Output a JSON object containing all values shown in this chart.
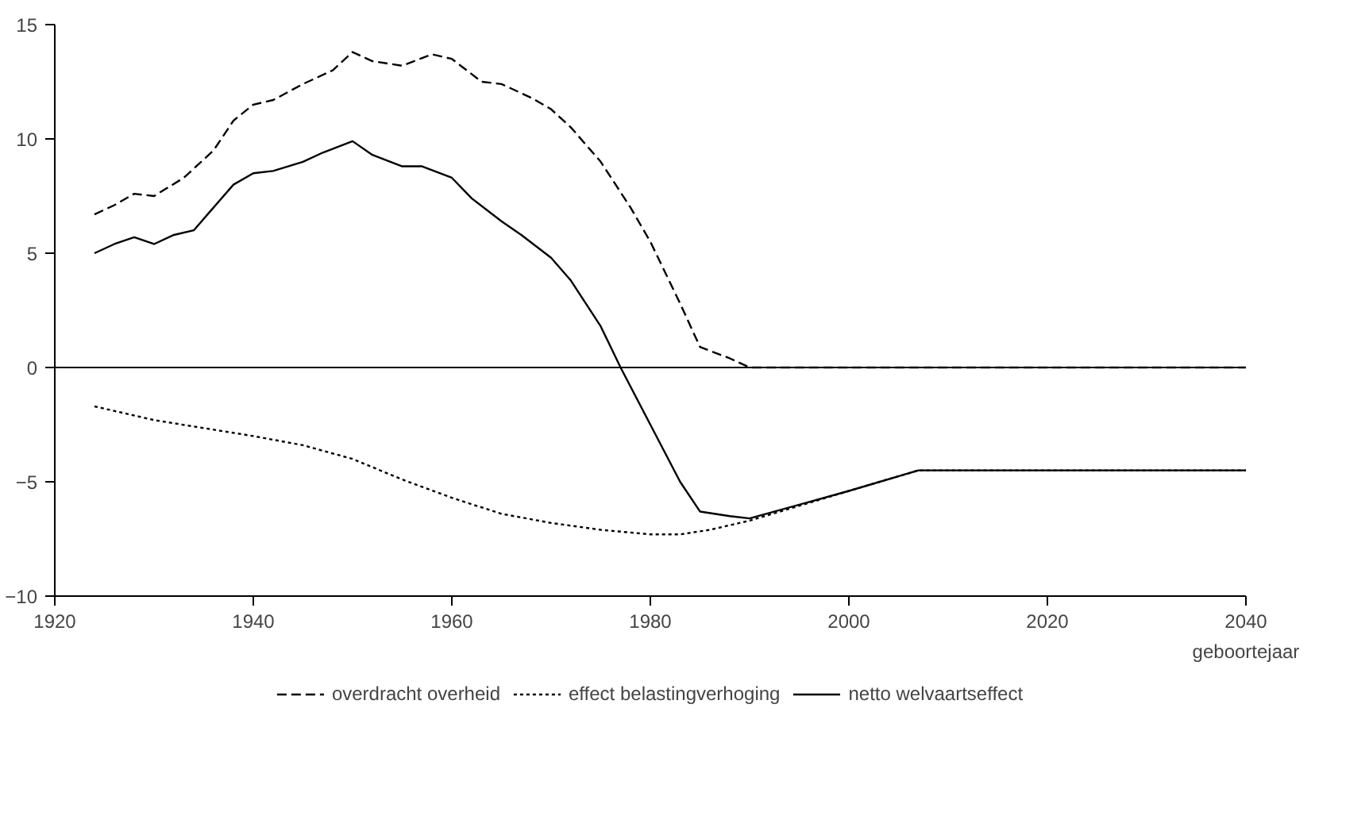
{
  "chart_data": {
    "type": "line",
    "xlabel": "geboortejaar",
    "xlim": [
      1920,
      2040
    ],
    "ylim": [
      -10,
      15
    ],
    "xticks": [
      1920,
      1940,
      1960,
      1980,
      2000,
      2020,
      2040
    ],
    "yticks": [
      -10,
      -5,
      0,
      5,
      10,
      15
    ],
    "grid": false,
    "legend": "bottom",
    "marker": "none",
    "ref_lines": [
      {
        "axis": "y",
        "value": 0,
        "color": "#000000"
      }
    ],
    "series": [
      {
        "name": "overdracht overheid",
        "color": "#000000",
        "line_style": "dashed",
        "x": [
          1924,
          1926,
          1928,
          1930,
          1933,
          1936,
          1938,
          1940,
          1942,
          1945,
          1948,
          1950,
          1952,
          1955,
          1958,
          1960,
          1963,
          1965,
          1968,
          1970,
          1972,
          1975,
          1978,
          1980,
          1983,
          1985,
          1988,
          1990,
          2040
        ],
        "values": [
          6.7,
          7.1,
          7.6,
          7.5,
          8.3,
          9.5,
          10.8,
          11.5,
          11.7,
          12.4,
          13.0,
          13.8,
          13.4,
          13.2,
          13.7,
          13.5,
          12.5,
          12.4,
          11.8,
          11.3,
          10.5,
          9.0,
          7.0,
          5.5,
          2.8,
          0.9,
          0.4,
          0,
          0
        ]
      },
      {
        "name": "effect belastingverhoging",
        "color": "#000000",
        "line_style": "dotted",
        "x": [
          1924,
          1930,
          1940,
          1945,
          1950,
          1955,
          1960,
          1965,
          1970,
          1975,
          1980,
          1983,
          1986,
          1990,
          2000,
          2007,
          2040
        ],
        "values": [
          -1.7,
          -2.3,
          -3.0,
          -3.4,
          -4.0,
          -4.9,
          -5.7,
          -6.4,
          -6.8,
          -7.1,
          -7.3,
          -7.3,
          -7.1,
          -6.7,
          -5.4,
          -4.5,
          -4.5
        ]
      },
      {
        "name": "netto welvaartseffect",
        "color": "#000000",
        "line_style": "solid",
        "x": [
          1924,
          1926,
          1928,
          1930,
          1932,
          1934,
          1936,
          1938,
          1940,
          1942,
          1945,
          1947,
          1950,
          1952,
          1955,
          1957,
          1960,
          1962,
          1965,
          1967,
          1970,
          1972,
          1975,
          1977,
          1980,
          1983,
          1985,
          1988,
          1990,
          2000,
          2007,
          2040
        ],
        "values": [
          5.0,
          5.4,
          5.7,
          5.4,
          5.8,
          6.0,
          7.0,
          8.0,
          8.5,
          8.6,
          9.0,
          9.4,
          9.9,
          9.3,
          8.8,
          8.8,
          8.3,
          7.4,
          6.4,
          5.8,
          4.8,
          3.8,
          1.8,
          0,
          -2.5,
          -5.0,
          -6.3,
          -6.5,
          -6.6,
          -5.4,
          -4.5,
          -4.5
        ]
      }
    ]
  }
}
